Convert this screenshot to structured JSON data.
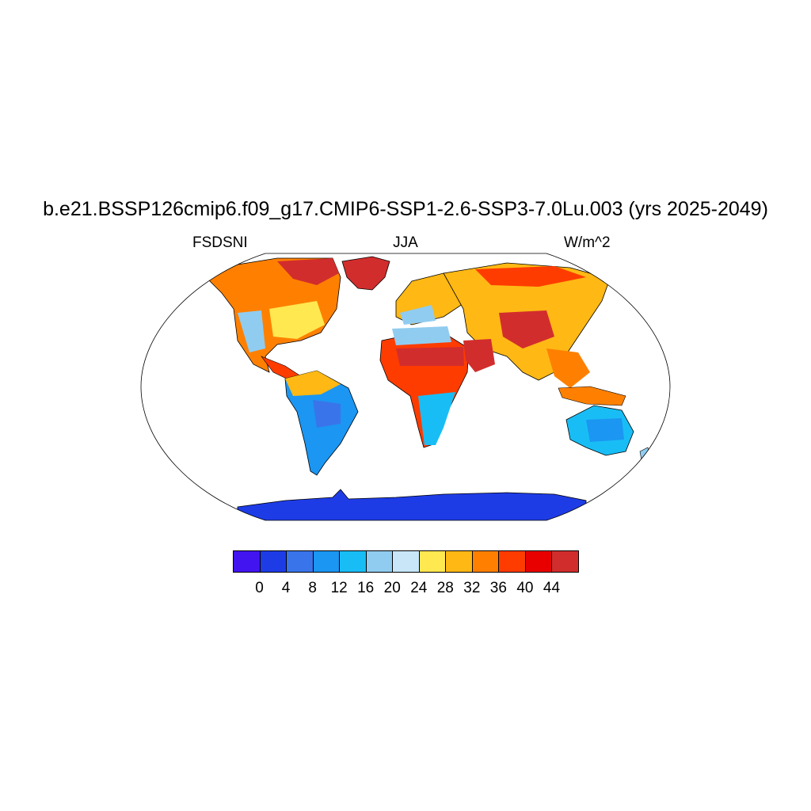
{
  "title": "b.e21.BSSP126cmip6.f09_g17.CMIP6-SSP1-2.6-SSP3-7.0Lu.003 (yrs 2025-2049)",
  "variable": "FSDSNI",
  "season": "JJA",
  "units": "W/m^2",
  "colorbar": {
    "ticks": [
      "0",
      "4",
      "8",
      "12",
      "16",
      "20",
      "24",
      "28",
      "32",
      "36",
      "40",
      "44"
    ],
    "colors": [
      "#4214f0",
      "#1e3ce6",
      "#3a74ea",
      "#1b96f2",
      "#19bdf5",
      "#90ccf0",
      "#c8e6f8",
      "#ffe850",
      "#ffb814",
      "#ff8000",
      "#ff3c00",
      "#e80000",
      "#d22d2d"
    ]
  }
}
